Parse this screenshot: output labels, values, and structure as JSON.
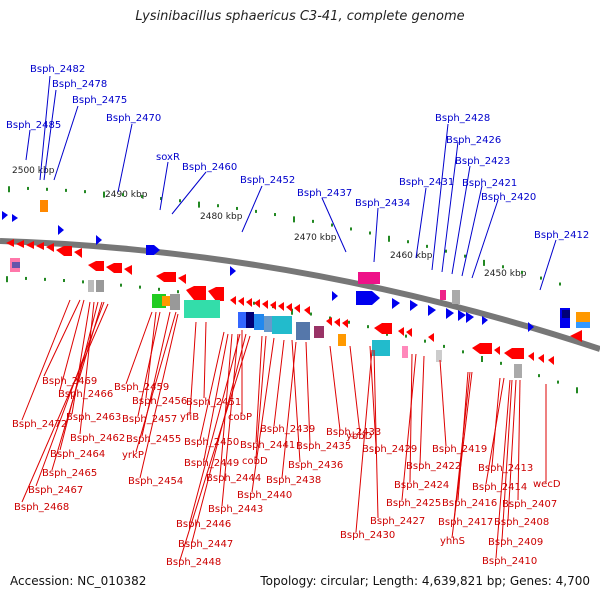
{
  "title": "Lysinibacillus sphaericus C3-41, complete genome",
  "footer": {
    "accession": "Accession: NC_010382",
    "topology": "Topology: circular; Length: 4,639,821 bp; Genes: 4,700"
  },
  "kbp_ticks": [
    "2500 kbp",
    "2490 kbp",
    "2480 kbp",
    "2470 kbp",
    "2460 kbp",
    "2450 kbp"
  ],
  "top_labels": [
    "Bsph_2482",
    "Bsph_2478",
    "Bsph_2475",
    "Bsph_2485",
    "Bsph_2470",
    "soxR",
    "Bsph_2460",
    "Bsph_2452",
    "Bsph_2437",
    "Bsph_2434",
    "Bsph_2431",
    "Bsph_2428",
    "Bsph_2426",
    "Bsph_2423",
    "Bsph_2421",
    "Bsph_2420",
    "Bsph_2412"
  ],
  "bottom_labels": [
    "Bsph_2469",
    "Bsph_2466",
    "Bsph_2472",
    "Bsph_2463",
    "Bsph_2462",
    "Bsph_2464",
    "Bsph_2465",
    "Bsph_2467",
    "Bsph_2468",
    "Bsph_2459",
    "Bsph_2456",
    "Bsph_2457",
    "Bsph_2455",
    "yrkP",
    "Bsph_2454",
    "Bsph_2451",
    "yfiB",
    "cobP",
    "Bsph_2450",
    "Bsph_2449",
    "Bsph_2444",
    "Bsph_2443",
    "Bsph_2446",
    "Bsph_2447",
    "Bsph_2448",
    "Bsph_2441",
    "cobD",
    "Bsph_2440",
    "Bsph_2439",
    "Bsph_2436",
    "Bsph_2438",
    "Bsph_2435",
    "Bsph_2433",
    "ybbD",
    "Bsph_2429",
    "Bsph_2427",
    "Bsph_2430",
    "Bsph_2424",
    "Bsph_2425",
    "Bsph_2422",
    "Bsph_2419",
    "Bsph_2416",
    "Bsph_2417",
    "yhhS",
    "Bsph_2413",
    "Bsph_2414",
    "Bsph_2407",
    "Bsph_2408",
    "Bsph_2409",
    "Bsph_2410",
    "wecD"
  ]
}
